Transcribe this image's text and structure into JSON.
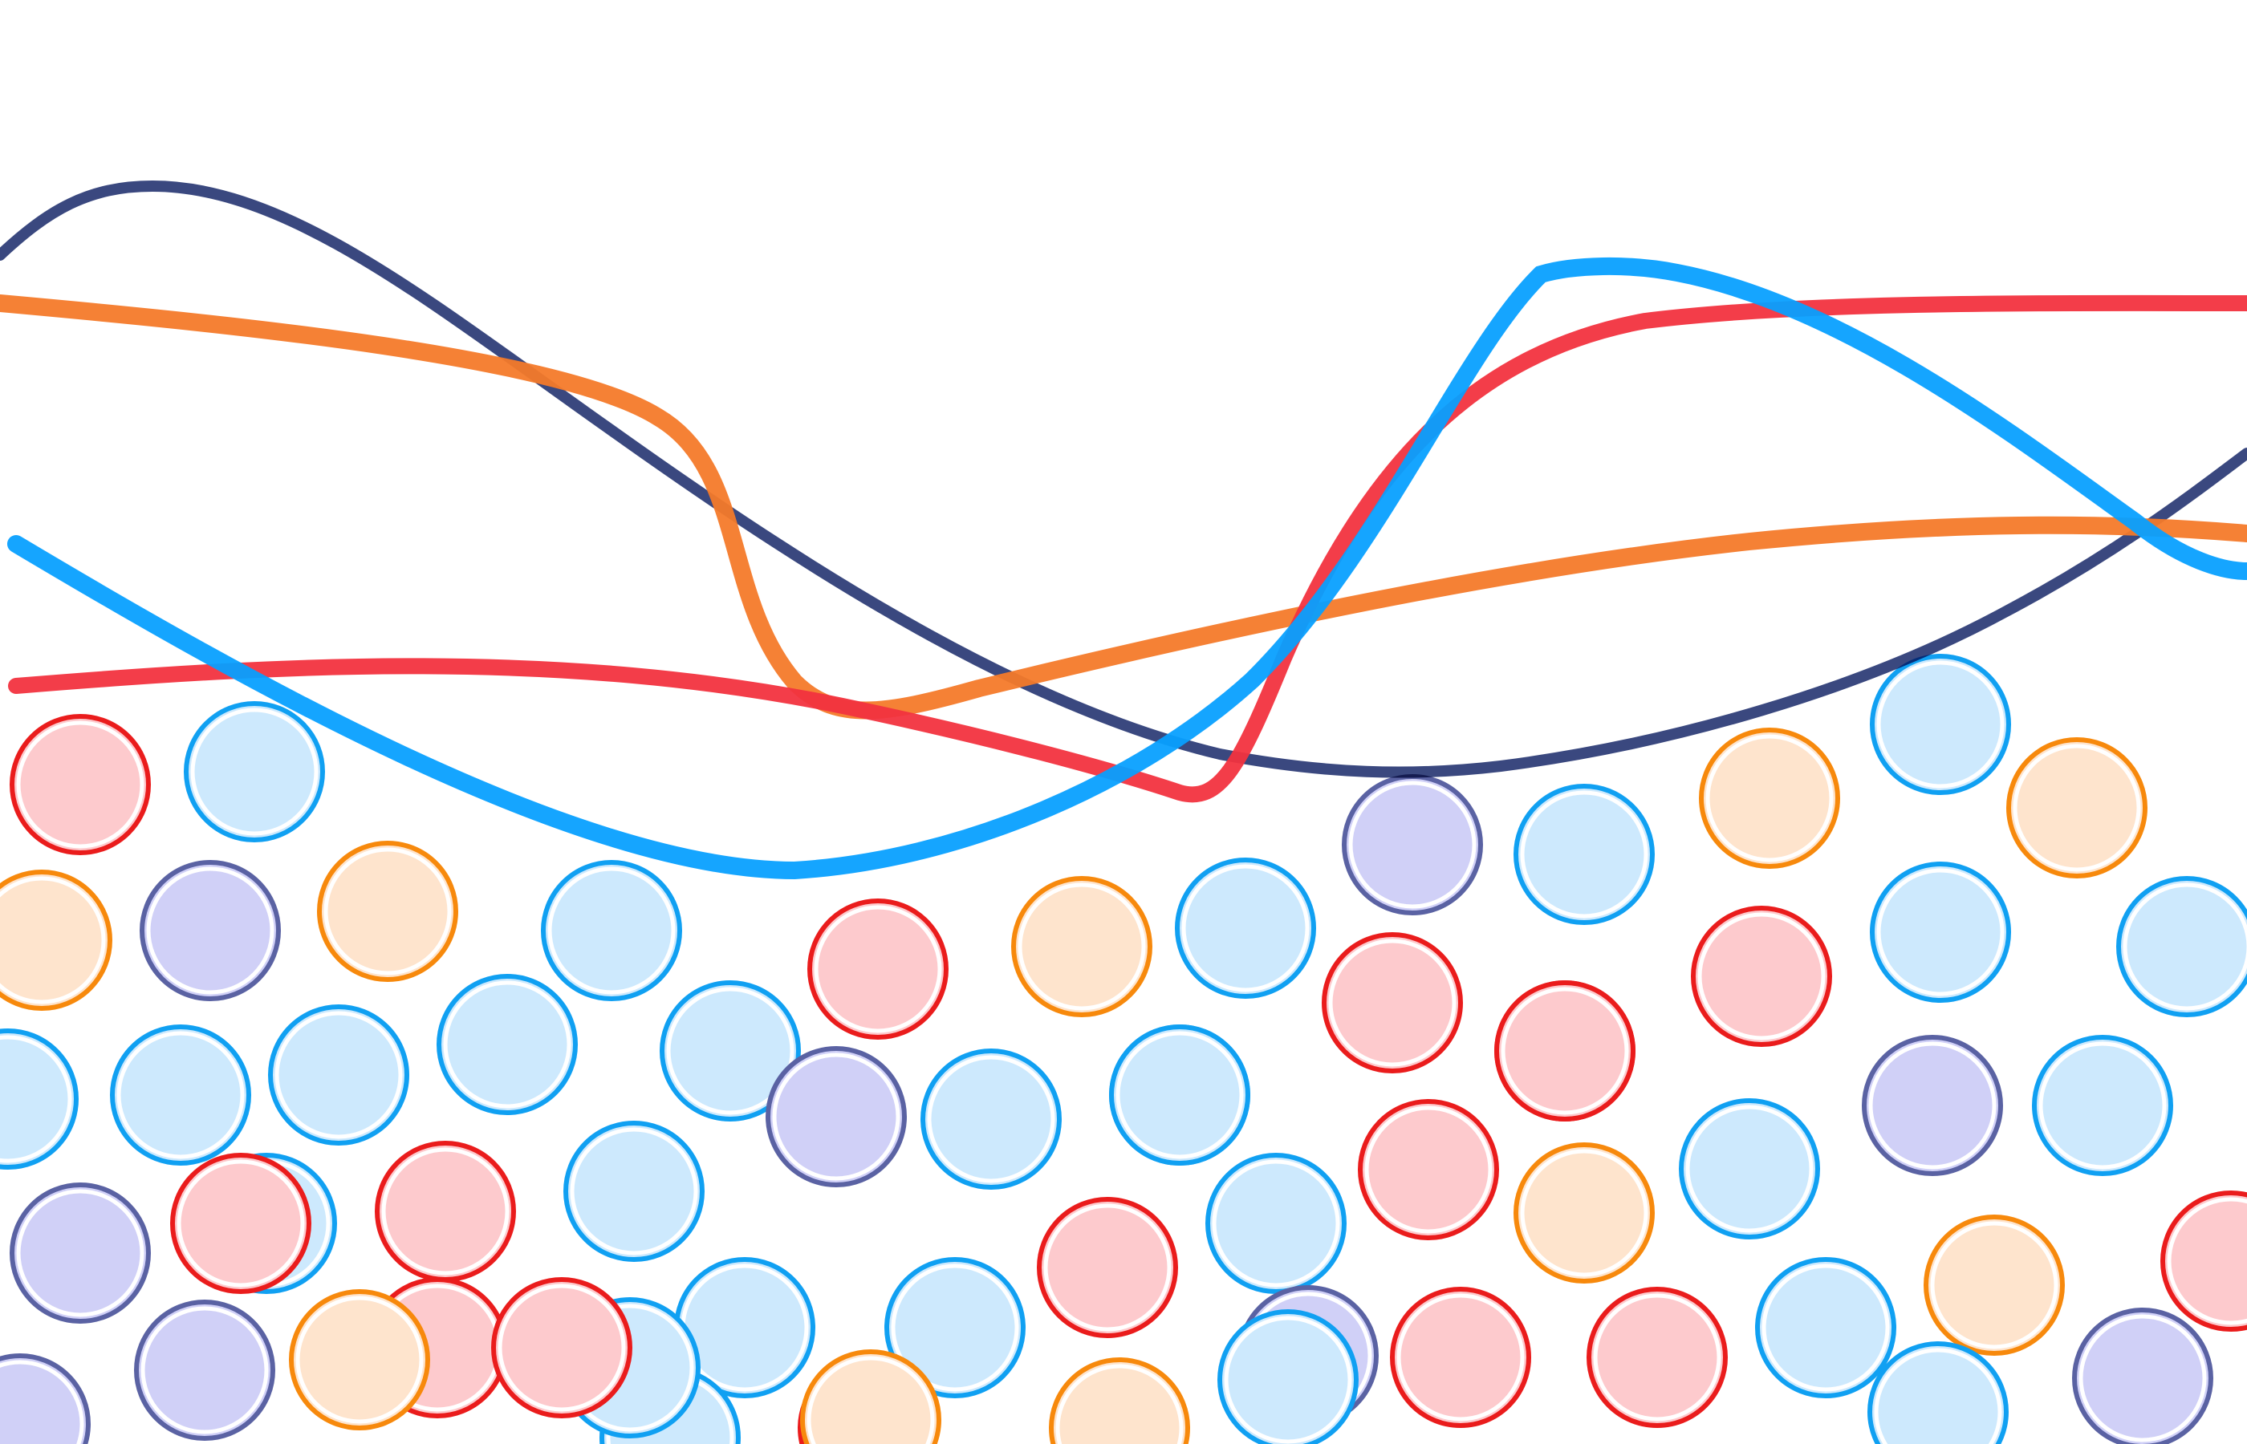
{
  "palette": {
    "background": "#ffffff",
    "navy": "#2f3e78",
    "orange": "#f47a2a",
    "red": "#f2333f",
    "sky_blue": "#08a0ff",
    "overlap_dark": "#0b1020"
  },
  "circle_styles": {
    "red": {
      "fill": "#fdcacd",
      "stroke": "#ea1c1c"
    },
    "blue": {
      "fill": "#cde9fd",
      "stroke": "#10a0f2"
    },
    "orange": {
      "fill": "#fee4cd",
      "stroke": "#f7890c"
    },
    "purple": {
      "fill": "#d0d0f7",
      "stroke": "#5a62a3"
    }
  },
  "circle_colors": [
    "red",
    "blue",
    "orange",
    "purple",
    "orange",
    "blue",
    "blue",
    "blue",
    "blue",
    "blue",
    "red",
    "orange",
    "blue",
    "purple",
    "blue",
    "red",
    "red",
    "blue",
    "orange",
    "blue",
    "orange",
    "blue",
    "blue",
    "red",
    "purple",
    "red",
    "blue",
    "orange",
    "blue",
    "purple",
    "blue",
    "purple",
    "blue",
    "red",
    "blue",
    "red",
    "red",
    "orange",
    "blue",
    "red",
    "purple",
    "blue",
    "red",
    "purple",
    "orange",
    "blue",
    "blue",
    "blue",
    "red",
    "blue",
    "red",
    "orange",
    "purple",
    "blue",
    "red",
    "blue",
    "purple",
    "blue",
    "red",
    "blue",
    "orange",
    "red"
  ],
  "curves": [
    {
      "name": "navy-wave",
      "color": "navy"
    },
    {
      "name": "orange-wave",
      "color": "orange"
    },
    {
      "name": "red-wave",
      "color": "red"
    },
    {
      "name": "blue-wave",
      "color": "sky_blue"
    }
  ]
}
